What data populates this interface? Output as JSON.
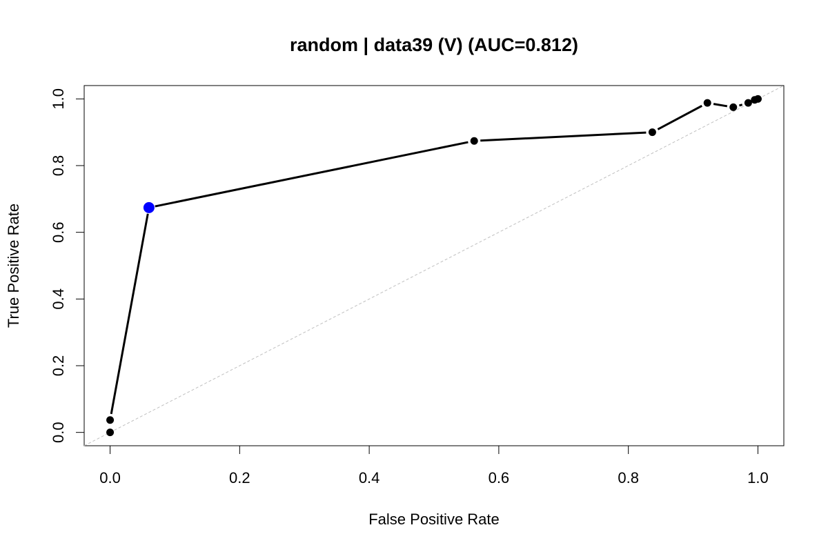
{
  "chart_data": {
    "type": "line",
    "title": "random | data39 (V) (AUC=0.812)",
    "xlabel": "False Positive Rate",
    "ylabel": "True Positive Rate",
    "xlim": [
      -0.04,
      1.04
    ],
    "ylim": [
      -0.04,
      1.04
    ],
    "x_ticks": [
      "0.0",
      "0.2",
      "0.4",
      "0.6",
      "0.8",
      "1.0"
    ],
    "y_ticks": [
      "0.0",
      "0.2",
      "0.4",
      "0.6",
      "0.8",
      "1.0"
    ],
    "grid": false,
    "legend": "none",
    "series": [
      {
        "x": [
          0.0,
          0.0,
          0.06,
          0.562,
          0.837,
          0.922,
          0.962,
          0.985,
          0.995,
          1.0
        ],
        "y": [
          0.0,
          0.037,
          0.674,
          0.874,
          0.9,
          0.988,
          0.975,
          0.988,
          0.997,
          1.0
        ],
        "color": "#000000"
      }
    ],
    "highlight_point": {
      "x": 0.06,
      "y": 0.674,
      "color": "#0000ff"
    },
    "reference_line": {
      "from": [
        0,
        0
      ],
      "to": [
        1,
        1
      ],
      "color": "#bfbfbf",
      "style": "dashed"
    }
  }
}
